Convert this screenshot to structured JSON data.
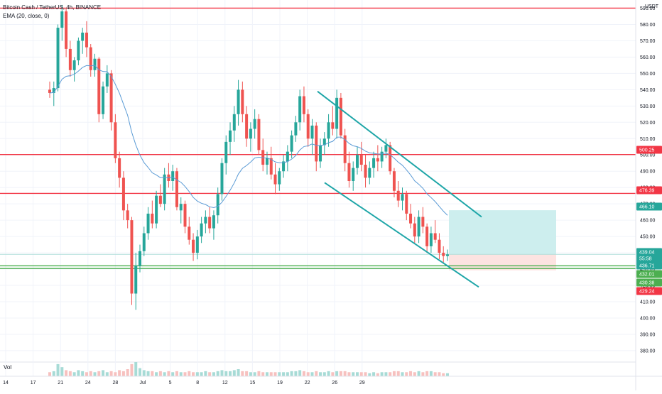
{
  "header": {
    "symbol_line": "Bitcoin Cash / TetherUS, 4h, BINANCE",
    "indicator_line": "EMA (20, close, 0)",
    "volume_label": "Vol",
    "currency": "USDT"
  },
  "colors": {
    "up": "#26a69a",
    "down": "#ef5350",
    "ema": "#5b9bd5",
    "hline": "#f23645",
    "support": "#4caf50",
    "channel": "#1fa6a8",
    "target_zone": "#cdeeee",
    "stop_zone": "#fde3e1"
  },
  "price_tags": [
    {
      "value": "500.25",
      "color": "#f23645"
    },
    {
      "value": "476.39",
      "color": "#f23645"
    },
    {
      "value": "466.10",
      "color": "#26a69a"
    },
    {
      "value": "439.04",
      "color": "#26a69a"
    },
    {
      "value": "55:58",
      "color": "#26a69a"
    },
    {
      "value": "436.71",
      "color": "#26a69a"
    },
    {
      "value": "432.01",
      "color": "#4caf50"
    },
    {
      "value": "430.38",
      "color": "#4caf50"
    },
    {
      "value": "429.24",
      "color": "#f23645"
    }
  ],
  "chart_data": {
    "type": "candlestick",
    "xlabels": [
      "14",
      "17",
      "21",
      "24",
      "28",
      "Jul",
      "5",
      "8",
      "12",
      "15",
      "19",
      "22",
      "26",
      "29"
    ],
    "yticks": [
      590,
      580,
      570,
      560,
      550,
      540,
      530,
      520,
      510,
      500,
      490,
      480,
      470,
      460,
      450,
      440,
      430,
      420,
      410,
      400,
      390,
      380
    ],
    "ylim": [
      373,
      595
    ],
    "horizontal_levels": [
      {
        "price": 590,
        "color": "hline"
      },
      {
        "price": 500.25,
        "color": "hline"
      },
      {
        "price": 476.39,
        "color": "hline"
      },
      {
        "price": 432.01,
        "color": "support"
      },
      {
        "price": 430.38,
        "color": "support"
      }
    ],
    "channel": {
      "upper": [
        [
          0,
          539
        ],
        [
          1,
          462
        ]
      ],
      "lower": [
        [
          0,
          483
        ],
        [
          1,
          419
        ]
      ]
    },
    "position": {
      "entry": 439.04,
      "target": 466.1,
      "stop": 429.24
    },
    "candles": [
      [
        540,
        545,
        535,
        538
      ],
      [
        538,
        545,
        530,
        541
      ],
      [
        541,
        580,
        539,
        578
      ],
      [
        578,
        592,
        570,
        588
      ],
      [
        588,
        590,
        560,
        565
      ],
      [
        565,
        570,
        548,
        552
      ],
      [
        552,
        560,
        545,
        558
      ],
      [
        558,
        572,
        555,
        570
      ],
      [
        570,
        578,
        562,
        575
      ],
      [
        575,
        582,
        560,
        566
      ],
      [
        566,
        568,
        548,
        552
      ],
      [
        552,
        562,
        548,
        559
      ],
      [
        559,
        560,
        520,
        525
      ],
      [
        525,
        545,
        522,
        542
      ],
      [
        542,
        555,
        538,
        550
      ],
      [
        550,
        552,
        515,
        520
      ],
      [
        520,
        525,
        495,
        498
      ],
      [
        498,
        502,
        480,
        486
      ],
      [
        486,
        490,
        460,
        466
      ],
      [
        466,
        470,
        455,
        460
      ],
      [
        460,
        462,
        408,
        415
      ],
      [
        415,
        440,
        405,
        432
      ],
      [
        432,
        445,
        428,
        441
      ],
      [
        441,
        456,
        438,
        452
      ],
      [
        452,
        468,
        448,
        464
      ],
      [
        464,
        472,
        455,
        458
      ],
      [
        458,
        478,
        455,
        475
      ],
      [
        475,
        482,
        468,
        470
      ],
      [
        470,
        492,
        466,
        488
      ],
      [
        488,
        495,
        480,
        484
      ],
      [
        484,
        494,
        478,
        490
      ],
      [
        490,
        492,
        466,
        468
      ],
      [
        466,
        474,
        458,
        470
      ],
      [
        470,
        472,
        452,
        456
      ],
      [
        456,
        462,
        445,
        448
      ],
      [
        448,
        452,
        435,
        440
      ],
      [
        440,
        454,
        436,
        450
      ],
      [
        450,
        462,
        446,
        458
      ],
      [
        458,
        466,
        452,
        462
      ],
      [
        462,
        468,
        452,
        455
      ],
      [
        455,
        466,
        448,
        463
      ],
      [
        463,
        480,
        458,
        476
      ],
      [
        476,
        498,
        472,
        495
      ],
      [
        495,
        512,
        488,
        508
      ],
      [
        508,
        520,
        500,
        515
      ],
      [
        515,
        530,
        508,
        525
      ],
      [
        525,
        546,
        518,
        540
      ],
      [
        540,
        545,
        520,
        525
      ],
      [
        525,
        530,
        505,
        510
      ],
      [
        510,
        520,
        502,
        516
      ],
      [
        516,
        528,
        510,
        522
      ],
      [
        522,
        525,
        500,
        503
      ],
      [
        503,
        510,
        490,
        494
      ],
      [
        494,
        502,
        488,
        498
      ],
      [
        498,
        505,
        485,
        488
      ],
      [
        488,
        495,
        476,
        482
      ],
      [
        482,
        492,
        478,
        490
      ],
      [
        490,
        500,
        486,
        496
      ],
      [
        496,
        506,
        490,
        502
      ],
      [
        502,
        515,
        498,
        512
      ],
      [
        512,
        524,
        508,
        520
      ],
      [
        520,
        540,
        515,
        536
      ],
      [
        536,
        542,
        520,
        525
      ],
      [
        525,
        528,
        505,
        510
      ],
      [
        510,
        522,
        500,
        518
      ],
      [
        518,
        520,
        490,
        496
      ],
      [
        496,
        510,
        492,
        506
      ],
      [
        506,
        514,
        500,
        510
      ],
      [
        510,
        525,
        505,
        520
      ],
      [
        520,
        530,
        512,
        516
      ],
      [
        516,
        540,
        510,
        535
      ],
      [
        535,
        538,
        510,
        512
      ],
      [
        512,
        516,
        490,
        495
      ],
      [
        495,
        502,
        480,
        484
      ],
      [
        484,
        496,
        478,
        492
      ],
      [
        492,
        505,
        488,
        500
      ],
      [
        500,
        508,
        490,
        494
      ],
      [
        494,
        500,
        480,
        486
      ],
      [
        486,
        496,
        482,
        492
      ],
      [
        492,
        502,
        486,
        498
      ],
      [
        498,
        506,
        490,
        496
      ],
      [
        496,
        505,
        492,
        502
      ],
      [
        502,
        510,
        498,
        506
      ],
      [
        506,
        508,
        488,
        490
      ],
      [
        490,
        492,
        474,
        478
      ],
      [
        478,
        484,
        468,
        472
      ],
      [
        472,
        480,
        466,
        476
      ],
      [
        476,
        478,
        460,
        464
      ],
      [
        464,
        470,
        455,
        458
      ],
      [
        458,
        462,
        446,
        450
      ],
      [
        450,
        466,
        446,
        462
      ],
      [
        462,
        468,
        452,
        456
      ],
      [
        456,
        458,
        440,
        444
      ],
      [
        444,
        456,
        440,
        452
      ],
      [
        452,
        460,
        446,
        448
      ],
      [
        448,
        452,
        436,
        440
      ],
      [
        440,
        444,
        434,
        438
      ],
      [
        438,
        442,
        435,
        439
      ]
    ],
    "volumes": [
      4,
      5,
      12,
      9,
      6,
      5,
      4,
      6,
      5,
      4,
      5,
      4,
      5,
      6,
      4,
      5,
      4,
      6,
      5,
      7,
      12,
      14,
      8,
      6,
      5,
      5,
      4,
      5,
      4,
      5,
      4,
      5,
      4,
      4,
      5,
      4,
      4,
      4,
      5,
      4,
      4,
      5,
      6,
      5,
      5,
      6,
      7,
      5,
      5,
      4,
      4,
      5,
      4,
      4,
      4,
      4,
      4,
      4,
      4,
      5,
      5,
      6,
      5,
      4,
      4,
      5,
      4,
      4,
      5,
      4,
      5,
      5,
      5,
      4,
      4,
      4,
      4,
      4,
      3,
      4,
      3,
      4,
      4,
      4,
      5,
      5,
      4,
      4,
      5,
      4,
      5,
      4,
      5,
      5,
      4,
      4,
      3,
      3
    ]
  }
}
